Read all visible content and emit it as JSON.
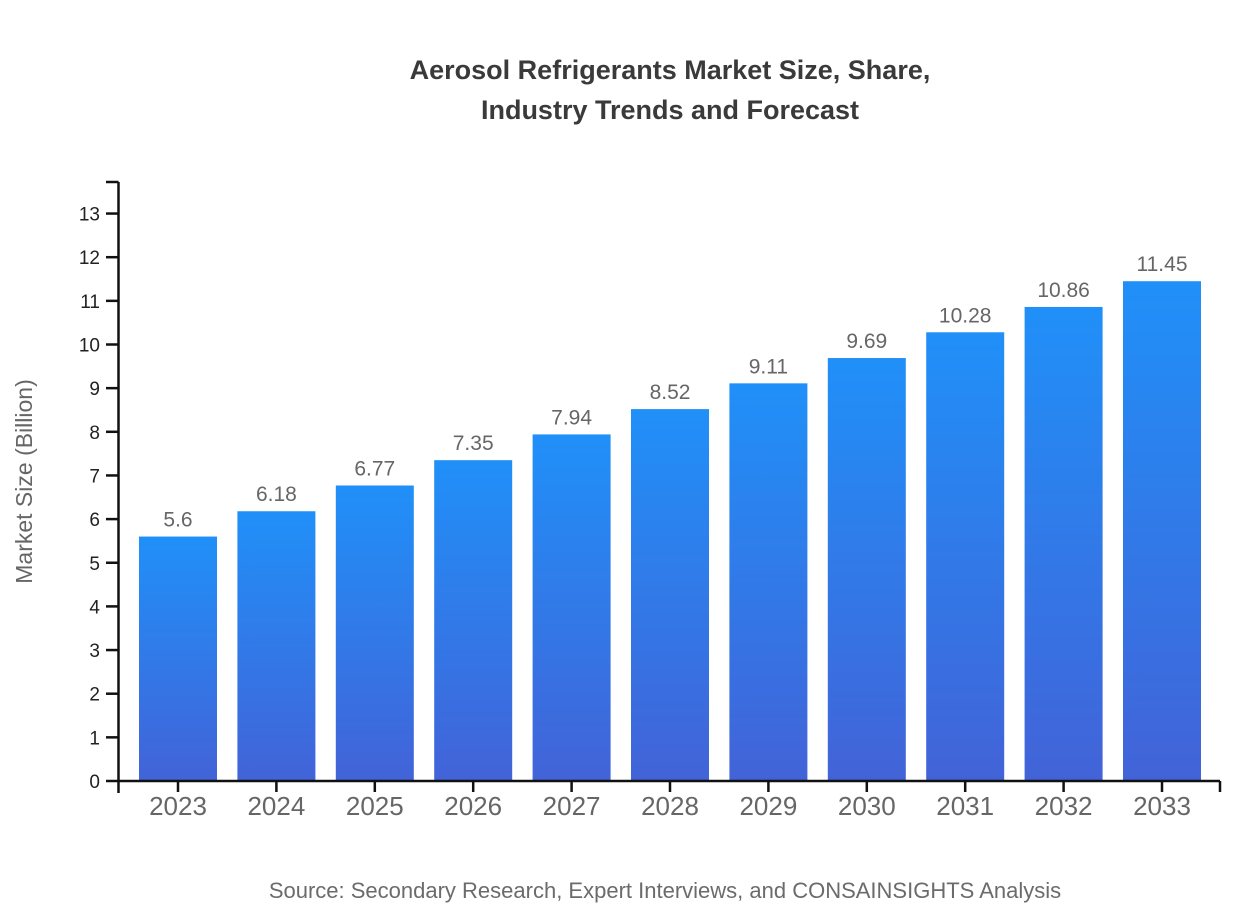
{
  "chart_data": {
    "type": "bar",
    "title_lines": [
      "Aerosol Refrigerants Market Size, Share,",
      "Industry Trends and Forecast"
    ],
    "categories": [
      "2023",
      "2024",
      "2025",
      "2026",
      "2027",
      "2028",
      "2029",
      "2030",
      "2031",
      "2032",
      "2033"
    ],
    "values": [
      5.6,
      6.18,
      6.77,
      7.35,
      7.94,
      8.52,
      9.11,
      9.69,
      10.28,
      10.86,
      11.45
    ],
    "value_labels": [
      "5.6",
      "6.18",
      "6.77",
      "7.35",
      "7.94",
      "8.52",
      "9.11",
      "9.69",
      "10.28",
      "10.86",
      "11.45"
    ],
    "xlabel": "",
    "ylabel": "Market Size (Billion)",
    "ylim": [
      0,
      13.7
    ],
    "yticks": [
      0,
      1,
      2,
      3,
      4,
      5,
      6,
      7,
      8,
      9,
      10,
      11,
      12,
      13
    ],
    "grid": "off",
    "legend": "none",
    "source": "Source: Secondary Research, Expert Interviews, and CONSAINSIGHTS Analysis",
    "colors": {
      "bar_gradient_top": "#2090F8",
      "bar_gradient_bottom": "#4263D8",
      "axis": "#111111",
      "y_tick_label": "#222222",
      "x_tick_label": "#666666",
      "value_label": "#666666",
      "title": "#3A3A3A",
      "ylabel": "#666666",
      "source": "#6B6B6B"
    }
  }
}
